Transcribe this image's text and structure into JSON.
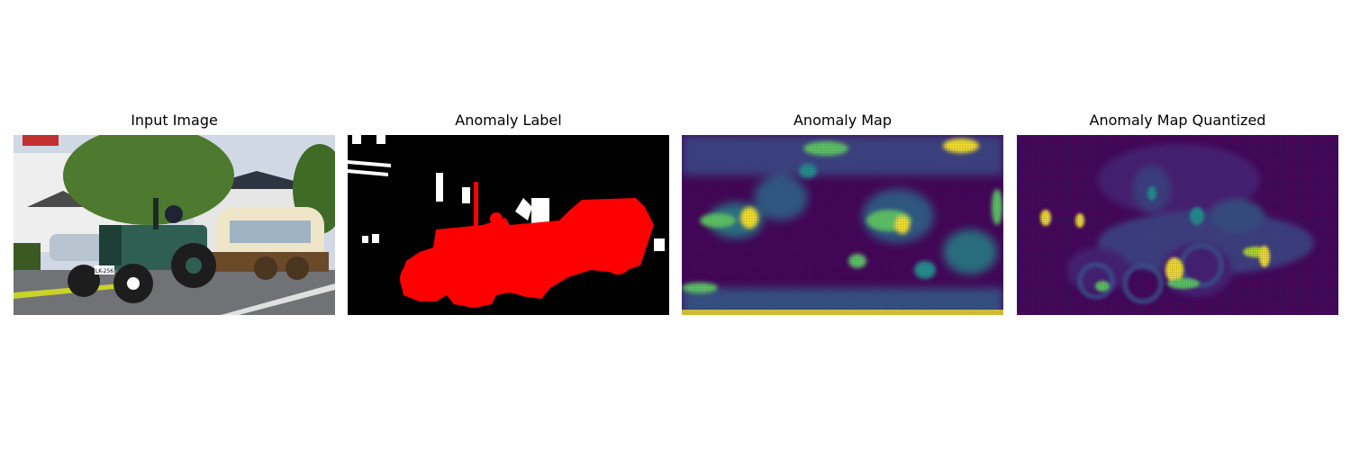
{
  "panels": [
    {
      "title": "Input Image"
    },
    {
      "title": "Anomaly Label"
    },
    {
      "title": "Anomaly Map"
    },
    {
      "title": "Anomaly Map Quantized"
    }
  ],
  "photo": {
    "plate": "LK-256"
  },
  "colors": {
    "label_background": "#000000",
    "label_anomaly": "#ff0000",
    "label_ignore": "#ffffff",
    "viridis_low": "#440154",
    "viridis_mid": "#21918c",
    "viridis_high": "#fde725"
  }
}
